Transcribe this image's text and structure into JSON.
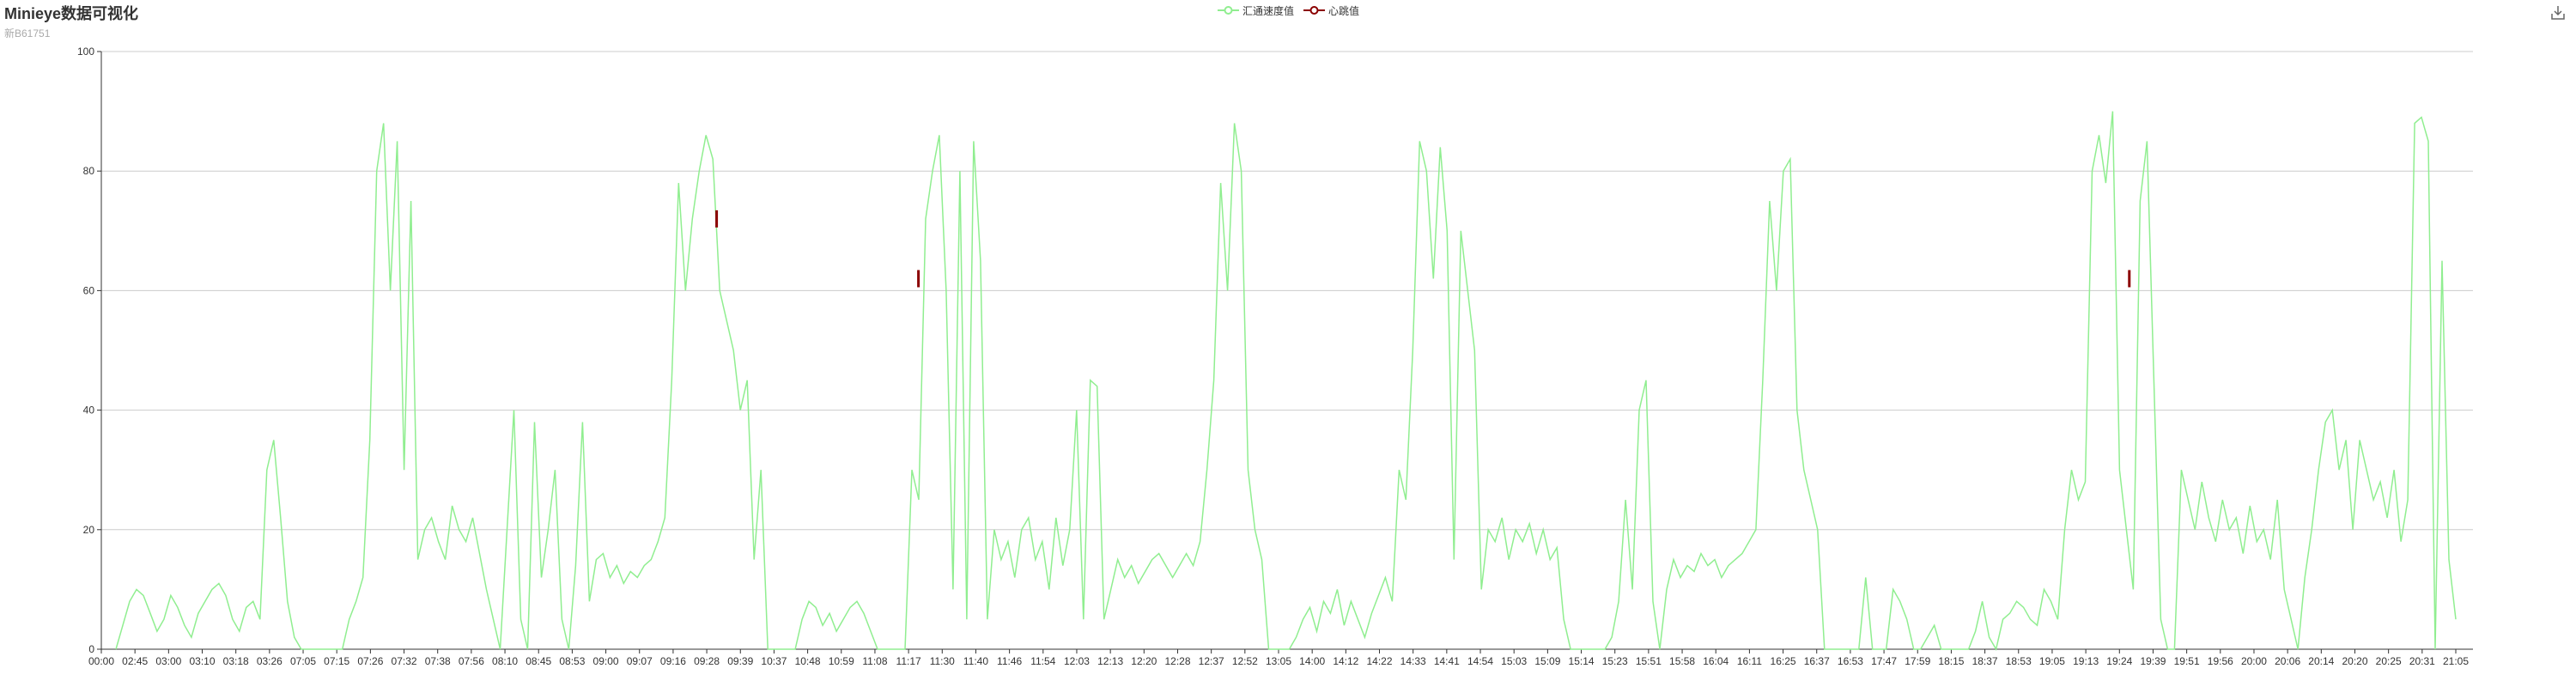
{
  "header": {
    "title": "Minieye数据可视化",
    "subtitle": "新B61751"
  },
  "toolbox": {
    "icon": "download-icon"
  },
  "colors": {
    "speed": "#90EE90",
    "heartbeat": "#8B0000",
    "axis": "#333333",
    "grid": "#cccccc"
  },
  "chart_data": {
    "type": "line",
    "title": "Minieye数据可视化",
    "subtitle": "新B61751",
    "legend": [
      "汇通速度值",
      "心跳值"
    ],
    "legend_position": "top-center",
    "ylim": [
      0,
      100
    ],
    "y_ticks": [
      "0",
      "20",
      "40",
      "60",
      "80",
      "100"
    ],
    "grid": true,
    "x_tick_labels": [
      "00:00",
      "02:45",
      "03:00",
      "03:10",
      "03:18",
      "03:26",
      "07:05",
      "07:15",
      "07:26",
      "07:32",
      "07:38",
      "07:56",
      "08:10",
      "08:45",
      "08:53",
      "09:00",
      "09:07",
      "09:16",
      "09:28",
      "09:39",
      "10:37",
      "10:48",
      "10:59",
      "11:08",
      "11:17",
      "11:30",
      "11:40",
      "11:46",
      "11:54",
      "12:03",
      "12:13",
      "12:20",
      "12:28",
      "12:37",
      "12:52",
      "13:05",
      "14:00",
      "14:12",
      "14:22",
      "14:33",
      "14:41",
      "14:54",
      "15:03",
      "15:09",
      "15:14",
      "15:23",
      "15:51",
      "15:58",
      "16:04",
      "16:11",
      "16:25",
      "16:37",
      "16:53",
      "17:47",
      "17:59",
      "18:15",
      "18:37",
      "18:53",
      "19:05",
      "19:13",
      "19:24",
      "19:39",
      "19:51",
      "19:56",
      "20:00",
      "20:06",
      "20:14",
      "20:20",
      "20:25",
      "20:31",
      "21:05"
    ],
    "series": [
      {
        "name": "汇通速度值",
        "color": "#90EE90",
        "values": [
          0,
          4,
          8,
          10,
          9,
          6,
          3,
          5,
          9,
          7,
          4,
          2,
          6,
          8,
          10,
          11,
          9,
          5,
          3,
          7,
          8,
          5,
          30,
          35,
          22,
          8,
          2,
          0,
          0,
          0,
          0,
          0,
          0,
          0,
          5,
          8,
          12,
          35,
          80,
          88,
          60,
          85,
          30,
          75,
          15,
          20,
          22,
          18,
          15,
          24,
          20,
          18,
          22,
          16,
          10,
          5,
          0,
          20,
          40,
          5,
          0,
          38,
          12,
          20,
          30,
          5,
          0,
          14,
          38,
          8,
          15,
          16,
          12,
          14,
          11,
          13,
          12,
          14,
          15,
          18,
          22,
          45,
          78,
          60,
          72,
          80,
          86,
          82,
          60,
          55,
          50,
          40,
          45,
          15,
          30,
          0,
          0,
          0,
          0,
          0,
          5,
          8,
          7,
          4,
          6,
          3,
          5,
          7,
          8,
          6,
          3,
          0,
          0,
          0,
          0,
          0,
          30,
          25,
          72,
          80,
          86,
          60,
          10,
          80,
          5,
          85,
          65,
          5,
          20,
          15,
          18,
          12,
          20,
          22,
          15,
          18,
          10,
          22,
          14,
          20,
          40,
          5,
          45,
          44,
          5,
          10,
          15,
          12,
          14,
          11,
          13,
          15,
          16,
          14,
          12,
          14,
          16,
          14,
          18,
          30,
          45,
          78,
          60,
          88,
          80,
          30,
          20,
          15,
          0,
          0,
          0,
          0,
          2,
          5,
          7,
          3,
          8,
          6,
          10,
          4,
          8,
          5,
          2,
          6,
          9,
          12,
          8,
          30,
          25,
          50,
          85,
          80,
          62,
          84,
          70,
          15,
          70,
          60,
          50,
          10,
          20,
          18,
          22,
          15,
          20,
          18,
          21,
          16,
          20,
          15,
          17,
          5,
          0,
          0,
          0,
          0,
          0,
          0,
          2,
          8,
          25,
          10,
          40,
          45,
          8,
          0,
          10,
          15,
          12,
          14,
          13,
          16,
          14,
          15,
          12,
          14,
          15,
          16,
          18,
          20,
          45,
          75,
          60,
          80,
          82,
          40,
          30,
          25,
          20,
          0,
          0,
          0,
          0,
          0,
          0,
          12,
          0,
          0,
          0,
          10,
          8,
          5,
          0,
          0,
          2,
          4,
          0,
          0,
          0,
          0,
          0,
          3,
          8,
          2,
          0,
          5,
          6,
          8,
          7,
          5,
          4,
          10,
          8,
          5,
          20,
          30,
          25,
          28,
          80,
          86,
          78,
          90,
          30,
          20,
          10,
          75,
          85,
          45,
          5,
          0,
          0,
          30,
          25,
          20,
          28,
          22,
          18,
          25,
          20,
          22,
          16,
          24,
          18,
          20,
          15,
          25,
          10,
          5,
          0,
          12,
          20,
          30,
          38,
          40,
          30,
          35,
          20,
          35,
          30,
          25,
          28,
          22,
          30,
          18,
          25,
          88,
          89,
          85,
          0,
          65,
          15,
          5
        ]
      },
      {
        "name": "心跳值",
        "color": "#8B0000",
        "points": [
          {
            "x": "09:28",
            "y": 72
          },
          {
            "x": "11:17",
            "y": 62
          },
          {
            "x": "19:24",
            "y": 62
          }
        ]
      }
    ]
  }
}
